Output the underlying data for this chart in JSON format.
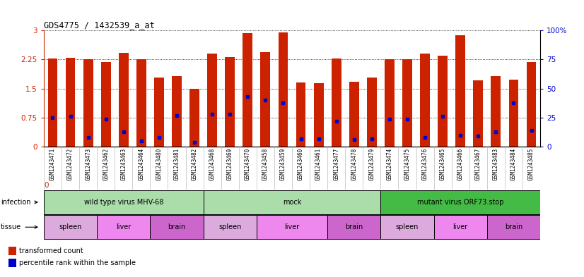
{
  "title": "GDS4775 / 1432539_a_at",
  "samples": [
    "GSM1243471",
    "GSM1243472",
    "GSM1243473",
    "GSM1243462",
    "GSM1243463",
    "GSM1243464",
    "GSM1243480",
    "GSM1243481",
    "GSM1243482",
    "GSM1243468",
    "GSM1243469",
    "GSM1243470",
    "GSM1243458",
    "GSM1243459",
    "GSM1243460",
    "GSM1243461",
    "GSM1243477",
    "GSM1243478",
    "GSM1243479",
    "GSM1243474",
    "GSM1243475",
    "GSM1243476",
    "GSM1243465",
    "GSM1243466",
    "GSM1243467",
    "GSM1243483",
    "GSM1243484",
    "GSM1243485"
  ],
  "bar_heights": [
    2.27,
    2.3,
    2.25,
    2.19,
    2.42,
    2.25,
    1.78,
    1.83,
    1.5,
    2.4,
    2.32,
    2.93,
    2.44,
    2.95,
    1.66,
    1.65,
    2.28,
    1.68,
    1.78,
    2.25,
    2.25,
    2.4,
    2.35,
    2.87,
    1.72,
    1.82,
    1.73,
    2.19
  ],
  "percentile_ranks": [
    25,
    26,
    8,
    24,
    13,
    5,
    8,
    27,
    4,
    28,
    28,
    43,
    40,
    38,
    7,
    7,
    22,
    6,
    7,
    24,
    24,
    8,
    26,
    10,
    9,
    13,
    38,
    14
  ],
  "infection_groups": [
    {
      "label": "wild type virus MHV-68",
      "start": 0,
      "end": 9,
      "color": "#aaddaa"
    },
    {
      "label": "mock",
      "start": 9,
      "end": 19,
      "color": "#aaddaa"
    },
    {
      "label": "mutant virus ORF73.stop",
      "start": 19,
      "end": 28,
      "color": "#44bb44"
    }
  ],
  "tissue_groups": [
    {
      "label": "spleen",
      "start": 0,
      "end": 3,
      "color": "#ddaadd"
    },
    {
      "label": "liver",
      "start": 3,
      "end": 6,
      "color": "#ee88ee"
    },
    {
      "label": "brain",
      "start": 6,
      "end": 9,
      "color": "#cc66cc"
    },
    {
      "label": "spleen",
      "start": 9,
      "end": 12,
      "color": "#ddaadd"
    },
    {
      "label": "liver",
      "start": 12,
      "end": 16,
      "color": "#ee88ee"
    },
    {
      "label": "brain",
      "start": 16,
      "end": 19,
      "color": "#cc66cc"
    },
    {
      "label": "spleen",
      "start": 19,
      "end": 22,
      "color": "#ddaadd"
    },
    {
      "label": "liver",
      "start": 22,
      "end": 25,
      "color": "#ee88ee"
    },
    {
      "label": "brain",
      "start": 25,
      "end": 28,
      "color": "#cc66cc"
    }
  ],
  "bar_color": "#cc2200",
  "dot_color": "#0000cc",
  "ylim_left": [
    0,
    3.0
  ],
  "ylim_right": [
    0,
    100
  ],
  "yticks_left": [
    0,
    0.75,
    1.5,
    2.25,
    3.0
  ],
  "yticks_right": [
    0,
    25,
    50,
    75,
    100
  ],
  "bar_width": 0.55,
  "dot_size": 16,
  "dot_marker": "s"
}
